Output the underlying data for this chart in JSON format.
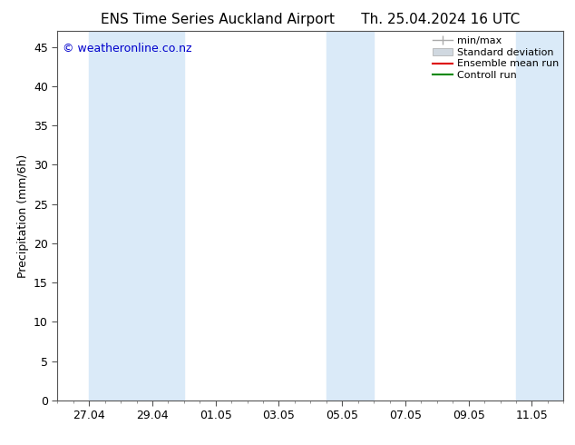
{
  "title": "ENS Time Series Auckland Airport      Th. 25.04.2024 16 UTC",
  "ylabel": "Precipitation (mm/6h)",
  "watermark": "© weatheronline.co.nz",
  "watermark_color": "#0000cc",
  "ylim": [
    0,
    47
  ],
  "yticks": [
    0,
    5,
    10,
    15,
    20,
    25,
    30,
    35,
    40,
    45
  ],
  "background_color": "#ffffff",
  "plot_bg_color": "#ffffff",
  "shade_color": "#daeaf8",
  "shade_alpha": 1.0,
  "xlim": [
    0,
    16
  ],
  "xtick_labels": [
    "27.04",
    "29.04",
    "01.05",
    "03.05",
    "05.05",
    "07.05",
    "09.05",
    "11.05"
  ],
  "xtick_positions": [
    1,
    3,
    5,
    7,
    9,
    11,
    13,
    15
  ],
  "shade_bands": [
    [
      1.0,
      2.5
    ],
    [
      2.5,
      4.0
    ],
    [
      8.5,
      10.0
    ],
    [
      14.5,
      16.0
    ]
  ],
  "legend_labels": [
    "min/max",
    "Standard deviation",
    "Ensemble mean run",
    "Controll run"
  ],
  "title_fontsize": 11,
  "tick_label_fontsize": 9,
  "ylabel_fontsize": 9,
  "watermark_fontsize": 9,
  "legend_fontsize": 8
}
